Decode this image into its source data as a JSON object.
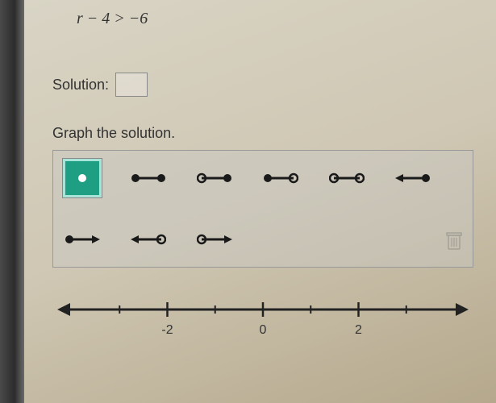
{
  "problem": {
    "inequality_display": "r − 4 > −6"
  },
  "solution": {
    "label": "Solution:",
    "value": ""
  },
  "graph": {
    "instruction": "Graph the solution.",
    "selected_tool": "point-closed",
    "tools": [
      {
        "id": "point-closed",
        "row": 1
      },
      {
        "id": "segment-closed-closed",
        "row": 1
      },
      {
        "id": "segment-open-closed",
        "row": 1
      },
      {
        "id": "segment-closed-open",
        "row": 1
      },
      {
        "id": "segment-open-open",
        "row": 1
      },
      {
        "id": "ray-left-closed",
        "row": 1
      },
      {
        "id": "ray-right-closed",
        "row": 1
      },
      {
        "id": "ray-left-open",
        "row": 2
      },
      {
        "id": "ray-right-open",
        "row": 2
      }
    ],
    "numberline": {
      "min": -4,
      "max": 4,
      "tick_step": 1,
      "labeled_ticks": [
        -2,
        0,
        2
      ],
      "axis_color": "#222222",
      "tick_color": "#222222",
      "line_width": 3
    }
  },
  "colors": {
    "tool_stroke": "#1a1a1a",
    "tool_fill_closed": "#1a1a1a",
    "tool_fill_open": "none",
    "selected_bg": "#1e9e82",
    "selected_border": "#a8e4d8",
    "point_fill_white": "#ffffff"
  }
}
